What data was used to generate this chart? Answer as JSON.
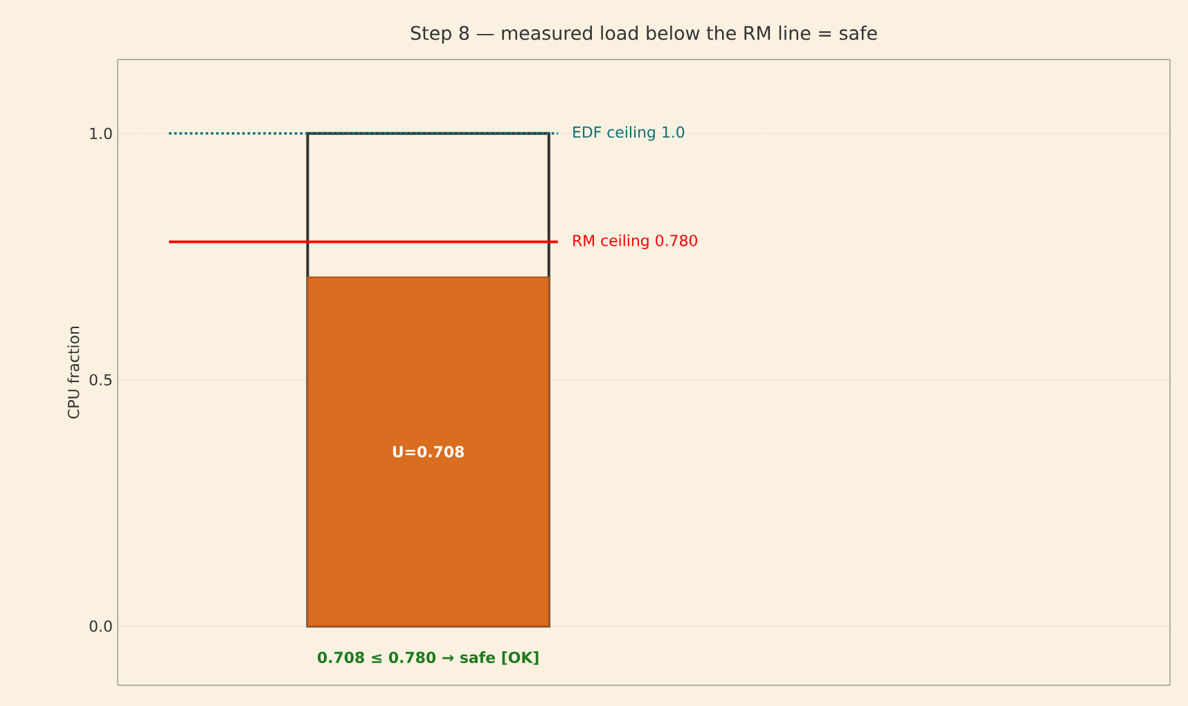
{
  "chart_data": {
    "type": "bar",
    "title": "Step 8 — measured load below the RM line = safe",
    "ylabel": "CPU fraction",
    "categories": [
      null
    ],
    "series": [
      {
        "color": "#333333",
        "values": [
          1.0
        ]
      },
      {
        "color": "#d96d20",
        "values": [
          0.708
        ],
        "value_labels": [
          "U=0.708"
        ]
      }
    ],
    "ylim": [
      -0.12,
      1.15
    ],
    "yticks": [
      {
        "value": 0,
        "label": "0.0"
      },
      {
        "value": 0.5,
        "label": "0.5"
      },
      {
        "value": 1.0,
        "label": "1.0"
      }
    ],
    "ref_lines": [
      {
        "axis": "y",
        "value": 1.0,
        "label": "EDF ceiling 1.0",
        "color": "#0f6e78",
        "line_style": "dotted"
      },
      {
        "axis": "y",
        "value": 0.78,
        "label": "RM ceiling 0.780",
        "color": "#ff0000",
        "line_style": "solid"
      }
    ],
    "annotations": [
      "0.708 ≤ 0.780  →  safe [OK]"
    ],
    "grid": "y",
    "tick_labels": "y"
  }
}
